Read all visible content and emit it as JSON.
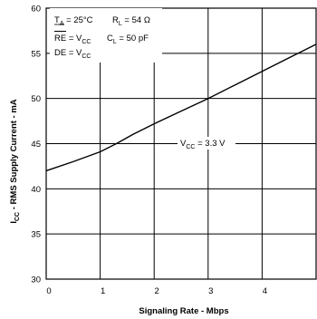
{
  "chart_data": {
    "type": "line",
    "xlabel": "Signaling Rate - Mbps",
    "ylabel_main": "I",
    "ylabel_sub": "CC",
    "ylabel_rest": " - RMS Supply Current - mA",
    "xlim": [
      0,
      5
    ],
    "ylim": [
      30,
      60
    ],
    "x_ticks": [
      "0",
      "1",
      "2",
      "3",
      "4"
    ],
    "y_ticks": [
      "30",
      "35",
      "40",
      "45",
      "50",
      "55",
      "60"
    ],
    "grid": true,
    "series": [
      {
        "x": [
          0,
          0.5,
          1.0,
          1.3,
          1.6,
          2.0,
          2.5,
          3.0,
          3.5,
          4.0,
          4.5,
          5.0
        ],
        "y": [
          42.0,
          43.0,
          44.1,
          45.0,
          46.0,
          47.2,
          48.6,
          50.0,
          51.5,
          53.0,
          54.5,
          56.0
        ]
      }
    ],
    "annotations": {
      "conditions": {
        "line1_a": "T",
        "line1_a_sub": "A",
        "line1_a_rest": " = 25°C",
        "line1_b": "R",
        "line1_b_sub": "L",
        "line1_b_rest": " = 54 Ω",
        "line2_a": "RE",
        "line2_a_rest": " = V",
        "line2_a_sub": "CC",
        "line2_b": "C",
        "line2_b_sub": "L",
        "line2_b_rest": " = 50 pF",
        "line3": "DE = V",
        "line3_sub": "CC"
      },
      "vcc_label": "V",
      "vcc_sub": "CC",
      "vcc_rest": " = 3.3 V"
    }
  }
}
